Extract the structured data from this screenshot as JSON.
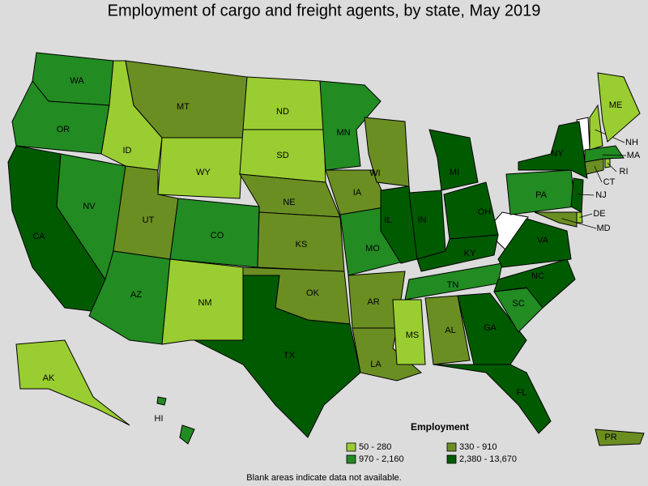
{
  "title": "Employment of cargo and freight agents, by state, May 2019",
  "legend": {
    "title": "Employment",
    "bins": [
      {
        "label": "50 - 280",
        "color": "#9acd32"
      },
      {
        "label": "330 - 910",
        "color": "#6b8e23"
      },
      {
        "label": "970 - 2,160",
        "color": "#228b22"
      },
      {
        "label": "2,380 - 13,670",
        "color": "#005a00"
      }
    ]
  },
  "states": [
    {
      "label": "WA",
      "bin": 2
    },
    {
      "label": "OR",
      "bin": 2
    },
    {
      "label": "CA",
      "bin": 3
    },
    {
      "label": "NV",
      "bin": 2
    },
    {
      "label": "ID",
      "bin": 0
    },
    {
      "label": "MT",
      "bin": 1
    },
    {
      "label": "WY",
      "bin": 0
    },
    {
      "label": "UT",
      "bin": 1
    },
    {
      "label": "CO",
      "bin": 2
    },
    {
      "label": "AZ",
      "bin": 2
    },
    {
      "label": "NM",
      "bin": 0
    },
    {
      "label": "ND",
      "bin": 0
    },
    {
      "label": "SD",
      "bin": 0
    },
    {
      "label": "NE",
      "bin": 1
    },
    {
      "label": "KS",
      "bin": 1
    },
    {
      "label": "OK",
      "bin": 1
    },
    {
      "label": "TX",
      "bin": 3
    },
    {
      "label": "MN",
      "bin": 2
    },
    {
      "label": "IA",
      "bin": 1
    },
    {
      "label": "MO",
      "bin": 2
    },
    {
      "label": "AR",
      "bin": 1
    },
    {
      "label": "LA",
      "bin": 1
    },
    {
      "label": "WI",
      "bin": 1
    },
    {
      "label": "IL",
      "bin": 3
    },
    {
      "label": "IN",
      "bin": 3
    },
    {
      "label": "OH",
      "bin": 3
    },
    {
      "label": "KY",
      "bin": 3
    },
    {
      "label": "MI",
      "bin": 3
    },
    {
      "label": "TN",
      "bin": 2
    },
    {
      "label": "MS",
      "bin": 0
    },
    {
      "label": "AL",
      "bin": 1
    },
    {
      "label": "GA",
      "bin": 3
    },
    {
      "label": "FL",
      "bin": 3
    },
    {
      "label": "SC",
      "bin": 2
    },
    {
      "label": "NC",
      "bin": 3
    },
    {
      "label": "VA",
      "bin": 3
    },
    {
      "label": "PA",
      "bin": 2
    },
    {
      "label": "NY",
      "bin": 3
    },
    {
      "label": "NJ",
      "bin": 3
    },
    {
      "label": "DE",
      "bin": 0
    },
    {
      "label": "MD",
      "bin": 1
    },
    {
      "label": "CT",
      "bin": 1
    },
    {
      "label": "RI",
      "bin": 0
    },
    {
      "label": "MA",
      "bin": 2
    },
    {
      "label": "NH",
      "bin": 0
    },
    {
      "label": "ME",
      "bin": 0
    },
    {
      "label": "AK",
      "bin": 0
    },
    {
      "label": "HI",
      "bin": 2
    },
    {
      "label": "PR",
      "bin": 1
    }
  ],
  "footnote": "Blank areas indicate data not available."
}
